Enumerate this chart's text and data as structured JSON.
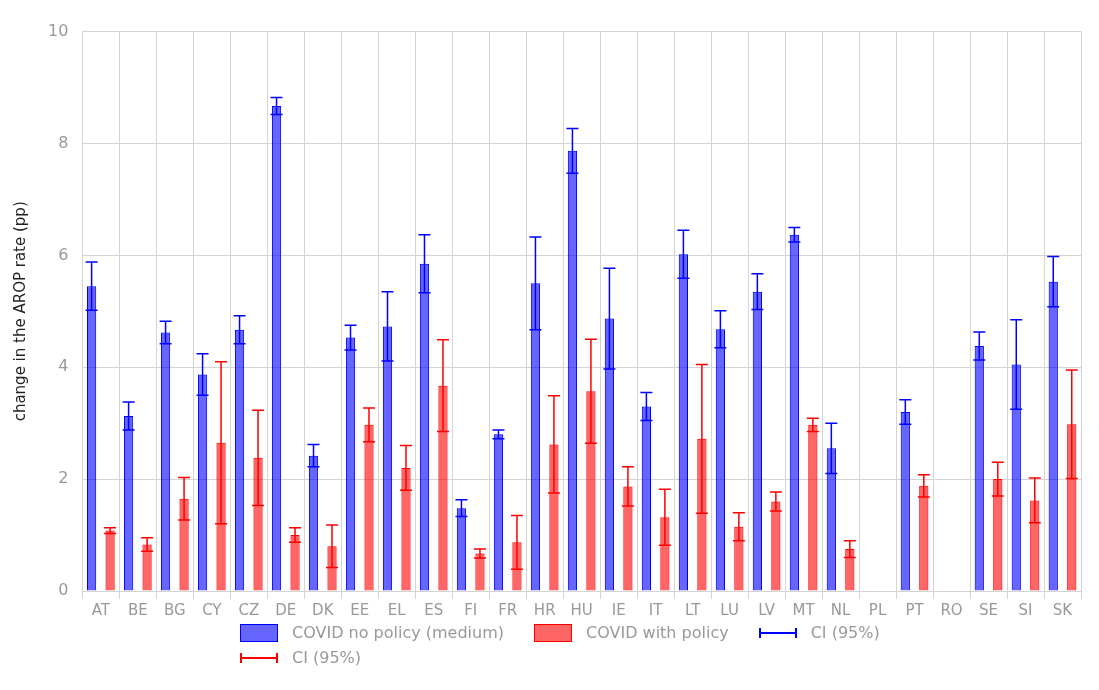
{
  "chart_data": {
    "type": "bar",
    "ylabel": "change in the AROP rate (pp)",
    "categories": [
      "AT",
      "BE",
      "BG",
      "CY",
      "CZ",
      "DE",
      "DK",
      "EE",
      "EL",
      "ES",
      "FI",
      "FR",
      "HR",
      "HU",
      "IE",
      "IT",
      "LT",
      "LU",
      "LV",
      "MT",
      "NL",
      "PL",
      "PT",
      "RO",
      "SE",
      "SI",
      "SK"
    ],
    "series": [
      {
        "name": "COVID no policy (medium)",
        "color": "#0000ff",
        "values": [
          5.45,
          3.13,
          4.62,
          3.87,
          4.67,
          8.67,
          2.42,
          4.53,
          4.73,
          5.85,
          1.48,
          2.8,
          5.5,
          7.87,
          4.87,
          3.3,
          6.02,
          4.68,
          5.35,
          6.37,
          2.55,
          null,
          3.2,
          null,
          4.38,
          4.05,
          5.53
        ],
        "errors": [
          0.43,
          0.25,
          0.2,
          0.37,
          0.25,
          0.15,
          0.2,
          0.22,
          0.62,
          0.52,
          0.15,
          0.08,
          0.83,
          0.4,
          0.9,
          0.25,
          0.43,
          0.33,
          0.32,
          0.13,
          0.45,
          null,
          0.22,
          null,
          0.25,
          0.8,
          0.45
        ]
      },
      {
        "name": "COVID with policy",
        "color": "#ff0000",
        "values": [
          1.08,
          0.83,
          1.65,
          2.65,
          2.38,
          1.0,
          0.8,
          2.97,
          2.2,
          3.67,
          0.67,
          0.87,
          2.62,
          3.57,
          1.87,
          1.32,
          2.72,
          1.15,
          1.6,
          2.97,
          0.75,
          null,
          1.88,
          null,
          2.0,
          1.62,
          2.98
        ],
        "errors": [
          0.05,
          0.12,
          0.38,
          1.45,
          0.85,
          0.13,
          0.38,
          0.3,
          0.4,
          0.82,
          0.08,
          0.48,
          0.87,
          0.93,
          0.35,
          0.5,
          1.33,
          0.25,
          0.17,
          0.12,
          0.15,
          null,
          0.2,
          null,
          0.3,
          0.4,
          0.97
        ]
      }
    ],
    "annotations": [
      "CI (95%)",
      "CI (95%)"
    ],
    "ylim": [
      0,
      10
    ],
    "yticks": [
      0,
      2,
      4,
      6,
      8,
      10
    ],
    "grid": true,
    "legend": "bottom"
  }
}
